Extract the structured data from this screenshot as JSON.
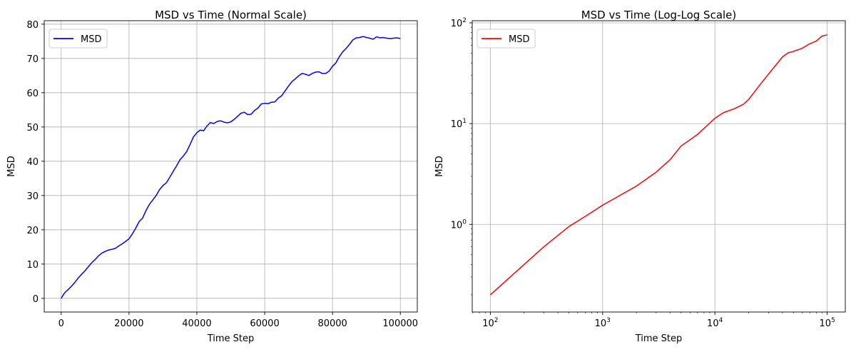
{
  "chart_data": [
    {
      "type": "line",
      "title": "MSD vs Time (Normal Scale)",
      "xlabel": "Time Step",
      "ylabel": "MSD",
      "xscale": "linear",
      "yscale": "linear",
      "xlim": [
        -5000,
        105000
      ],
      "ylim": [
        -4,
        81
      ],
      "xticks": [
        0,
        20000,
        40000,
        60000,
        80000,
        100000
      ],
      "xtick_labels": [
        "0",
        "20000",
        "40000",
        "60000",
        "80000",
        "100000"
      ],
      "yticks": [
        0,
        10,
        20,
        30,
        40,
        50,
        60,
        70,
        80
      ],
      "ytick_labels": [
        "0",
        "10",
        "20",
        "30",
        "40",
        "50",
        "60",
        "70",
        "80"
      ],
      "grid": true,
      "legend": "top-left",
      "series": [
        {
          "name": "MSD",
          "color": "#0000ff",
          "x": [
            0,
            1000,
            2000,
            3000,
            4000,
            5000,
            6000,
            7000,
            8000,
            9000,
            10000,
            11000,
            12000,
            13000,
            14000,
            15000,
            16000,
            17000,
            18000,
            19000,
            20000,
            21000,
            22000,
            23000,
            24000,
            25000,
            26000,
            27000,
            28000,
            29000,
            30000,
            31000,
            32000,
            33000,
            34000,
            35000,
            36000,
            37000,
            38000,
            39000,
            40000,
            41000,
            42000,
            43000,
            44000,
            45000,
            46000,
            47000,
            48000,
            49000,
            50000,
            51000,
            52000,
            53000,
            54000,
            55000,
            56000,
            57000,
            58000,
            59000,
            60000,
            61000,
            62000,
            63000,
            64000,
            65000,
            66000,
            67000,
            68000,
            69000,
            70000,
            71000,
            72000,
            73000,
            74000,
            75000,
            76000,
            77000,
            78000,
            79000,
            80000,
            81000,
            82000,
            83000,
            84000,
            85000,
            86000,
            87000,
            88000,
            89000,
            90000,
            91000,
            92000,
            93000,
            94000,
            95000,
            96000,
            97000,
            98000,
            99000,
            100000
          ],
          "y": [
            0,
            1.6,
            2.5,
            3.5,
            4.6,
            5.9,
            7.0,
            8.0,
            9.2,
            10.4,
            11.3,
            12.4,
            13.2,
            13.7,
            14.1,
            14.3,
            14.6,
            15.3,
            15.9,
            16.6,
            17.4,
            18.8,
            20.5,
            22.4,
            23.4,
            25.6,
            27.4,
            28.7,
            30.0,
            31.7,
            32.9,
            33.7,
            35.3,
            37.0,
            38.6,
            40.4,
            41.5,
            42.8,
            44.9,
            47.1,
            48.3,
            49.1,
            48.9,
            50.3,
            51.3,
            51.0,
            51.6,
            51.8,
            51.4,
            51.2,
            51.5,
            52.2,
            53.1,
            54.0,
            54.3,
            53.6,
            53.7,
            54.8,
            55.5,
            56.7,
            56.9,
            56.8,
            57.2,
            57.3,
            58.4,
            59.1,
            60.5,
            61.9,
            63.2,
            64.0,
            64.9,
            65.6,
            65.4,
            65.0,
            65.6,
            66.0,
            66.1,
            65.6,
            65.6,
            66.3,
            67.7,
            68.7,
            70.5,
            71.9,
            72.9,
            74.1,
            75.4,
            76.0,
            76.1,
            76.4,
            76.1,
            75.9,
            75.6,
            76.3,
            76.0,
            76.1,
            75.9,
            75.8,
            75.9,
            76.0,
            75.8
          ]
        }
      ]
    },
    {
      "type": "line",
      "title": "MSD vs Time (Log-Log Scale)",
      "xlabel": "Time Step",
      "ylabel": "MSD",
      "xscale": "log",
      "yscale": "log",
      "xlim": [
        69,
        145000
      ],
      "ylim": [
        0.135,
        105
      ],
      "xticks": [
        100,
        1000,
        10000,
        100000
      ],
      "xtick_labels": [
        [
          "10",
          "2"
        ],
        [
          "10",
          "3"
        ],
        [
          "10",
          "4"
        ],
        [
          "10",
          "5"
        ]
      ],
      "yticks": [
        1,
        10,
        100
      ],
      "ytick_labels": [
        [
          "10",
          "0"
        ],
        [
          "10",
          "1"
        ],
        [
          "10",
          "2"
        ]
      ],
      "grid": true,
      "legend": "top-left",
      "series": [
        {
          "name": "MSD",
          "color": "#ff0000",
          "x": [
            100,
            150,
            200,
            300,
            500,
            700,
            1000,
            1500,
            2000,
            3000,
            4000,
            5000,
            7000,
            10000,
            12000,
            15000,
            18000,
            20000,
            25000,
            30000,
            40000,
            45000,
            50000,
            60000,
            70000,
            80000,
            90000,
            100000
          ],
          "y": [
            0.2,
            0.3,
            0.4,
            0.6,
            0.95,
            1.2,
            1.55,
            2.0,
            2.4,
            3.3,
            4.4,
            6.0,
            7.8,
            11.3,
            12.9,
            14.1,
            15.6,
            17.4,
            24,
            31,
            46,
            50.5,
            52,
            56,
            62,
            66,
            74,
            76
          ]
        }
      ]
    }
  ]
}
